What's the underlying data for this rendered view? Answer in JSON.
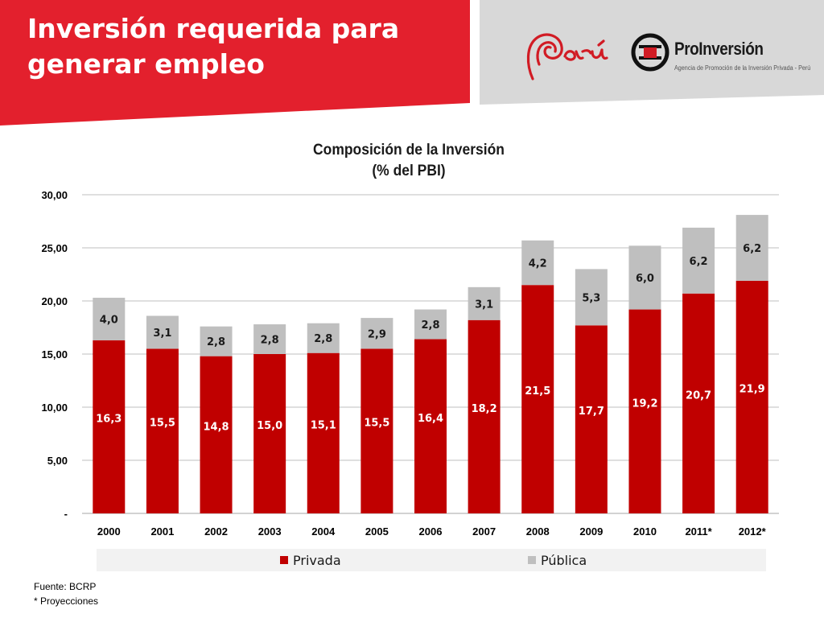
{
  "slide": {
    "title": "Inversión requerida para generar empleo",
    "logos": {
      "peru": "Perú",
      "proinversion_name": "ProInversión",
      "proinversion_tagline": "Agencia de Promoción de la Inversión Privada - Perú"
    },
    "footnotes": [
      "Fuente: BCRP",
      "* Proyecciones"
    ]
  },
  "colors": {
    "brand_red": "#e3202d",
    "header_gray": "#d8d8d8",
    "privada": "#c00000",
    "publica": "#bfbfbf",
    "legend_bg": "#f2f2f2",
    "grid": "#bfbfbf"
  },
  "chart_data": {
    "type": "bar",
    "stacked": true,
    "title": "Composición de la Inversión",
    "subtitle": "(% del PBI)",
    "categories": [
      "2000",
      "2001",
      "2002",
      "2003",
      "2004",
      "2005",
      "2006",
      "2007",
      "2008",
      "2009",
      "2010",
      "2011*",
      "2012*"
    ],
    "series": [
      {
        "name": "Privada",
        "values": [
          16.3,
          15.5,
          14.8,
          15.0,
          15.1,
          15.5,
          16.4,
          18.2,
          21.5,
          17.7,
          19.2,
          20.7,
          21.9
        ],
        "labels": [
          "16,3",
          "15,5",
          "14,8",
          "15,0",
          "15,1",
          "15,5",
          "16,4",
          "18,2",
          "21,5",
          "17,7",
          "19,2",
          "20,7",
          "21,9"
        ]
      },
      {
        "name": "Pública",
        "values": [
          4.0,
          3.1,
          2.8,
          2.8,
          2.8,
          2.9,
          2.8,
          3.1,
          4.2,
          5.3,
          6.0,
          6.2,
          6.2
        ],
        "labels": [
          "4,0",
          "3,1",
          "2,8",
          "2,8",
          "2,8",
          "2,9",
          "2,8",
          "3,1",
          "4,2",
          "5,3",
          "6,0",
          "6,2",
          "6,2"
        ]
      }
    ],
    "ylim": [
      0,
      30
    ],
    "yticks": [
      0,
      5,
      10,
      15,
      20,
      25,
      30
    ],
    "ytick_labels": [
      "-",
      "5,00",
      "10,00",
      "15,00",
      "20,00",
      "25,00",
      "30,00"
    ],
    "grid": true,
    "legend_position": "bottom"
  }
}
